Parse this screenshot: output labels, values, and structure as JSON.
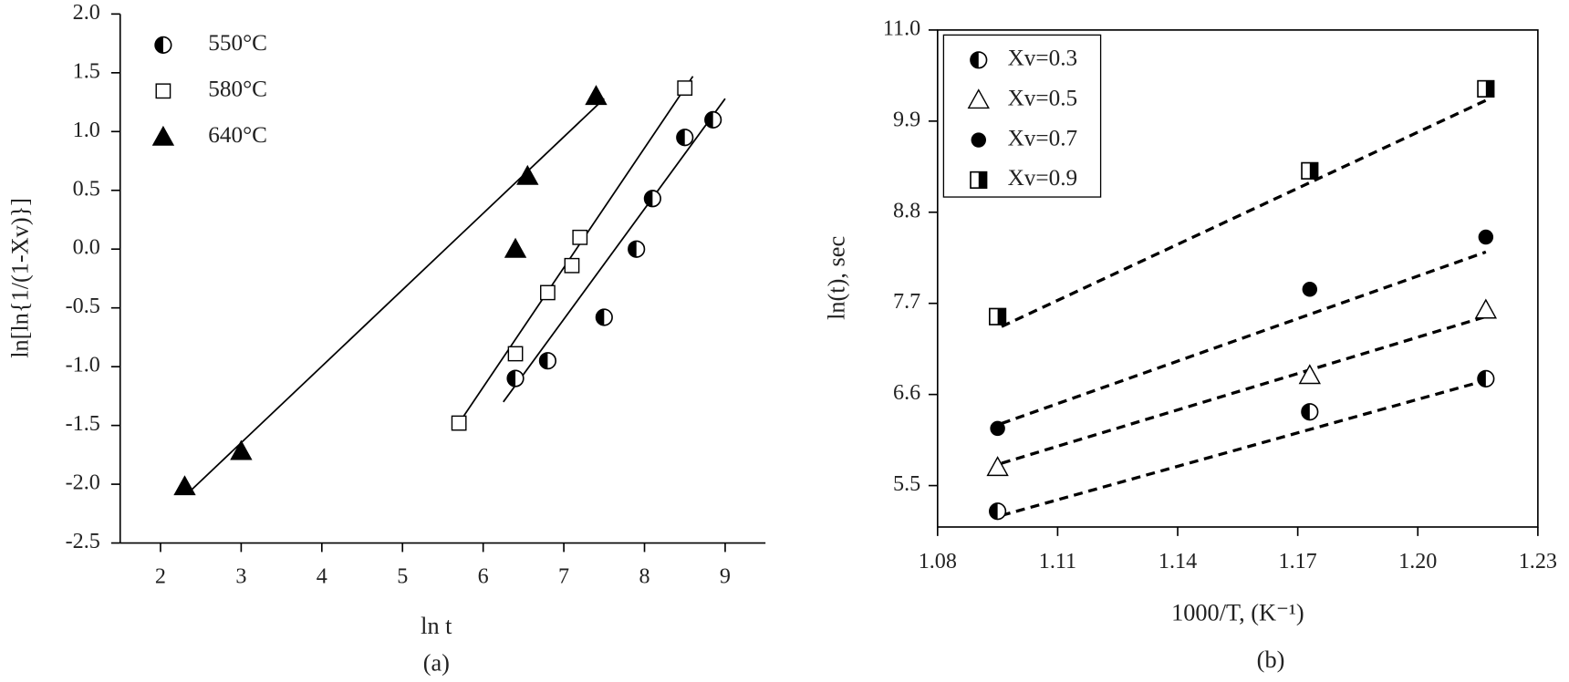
{
  "chart_data": [
    {
      "type": "scatter",
      "subtitle": "(a)",
      "xlabel": "ln t",
      "ylabel": "ln[ln{1/(1-Xv)}]",
      "xlim": [
        1.5,
        9.5
      ],
      "xticks": [
        2,
        3,
        4,
        5,
        6,
        7,
        8,
        9
      ],
      "ylim": [
        -2.5,
        2.0
      ],
      "yticks": [
        {
          "value": -2.5,
          "label": "-2.5"
        },
        {
          "value": -2,
          "label": "-2.0"
        },
        {
          "value": -1.5,
          "label": "-1.5"
        },
        {
          "value": -1,
          "label": "-1.0"
        },
        -0.5,
        {
          "value": 0,
          "label": "0.0"
        },
        0.5,
        {
          "value": 1,
          "label": "1.0"
        },
        {
          "value": 1.5,
          "label": "1.5"
        },
        {
          "value": 2,
          "label": "2.0"
        }
      ],
      "legend": "top-left",
      "legend_box": false,
      "frame": "left-bottom",
      "fit_style": "solid",
      "series": [
        {
          "name": "550°C",
          "color": "#000",
          "marker": "half-circle-left",
          "x": [
            6.4,
            6.8,
            7.5,
            7.9,
            8.1,
            8.5,
            8.85
          ],
          "values": [
            -1.1,
            -0.95,
            -0.58,
            0.0,
            0.43,
            0.95,
            1.1
          ],
          "fit": {
            "x": [
              6.25,
              9.0
            ],
            "y": [
              -1.3,
              1.28
            ]
          }
        },
        {
          "name": "580°C",
          "color": "#000",
          "marker": "open-square",
          "x": [
            5.7,
            6.4,
            6.8,
            7.1,
            7.2,
            8.5
          ],
          "values": [
            -1.48,
            -0.89,
            -0.37,
            -0.14,
            0.1,
            1.37
          ],
          "fit": {
            "x": [
              5.7,
              8.6
            ],
            "y": [
              -1.48,
              1.47
            ]
          }
        },
        {
          "name": "640°C",
          "color": "#000",
          "marker": "filled-triangle",
          "x": [
            2.3,
            3.0,
            6.4,
            6.55,
            7.4
          ],
          "values": [
            -2.02,
            -1.72,
            0.0,
            0.62,
            1.3
          ],
          "fit": {
            "x": [
              2.35,
              7.5
            ],
            "y": [
              -2.07,
              1.28
            ]
          }
        }
      ]
    },
    {
      "type": "scatter",
      "subtitle": "(b)",
      "xlabel": "1000/T, (K⁻¹)",
      "ylabel": "ln(t), sec",
      "xlim": [
        1.08,
        1.23
      ],
      "xticks": [
        1.08,
        1.11,
        1.14,
        1.17,
        {
          "value": 1.2,
          "label": "1.20"
        },
        1.23
      ],
      "ylim": [
        5.0,
        11.0
      ],
      "yticks": [
        5.5,
        6.6,
        7.7,
        8.8,
        9.9,
        {
          "value": 11,
          "label": "11.0"
        }
      ],
      "legend": "top-left",
      "legend_box": true,
      "frame": "box",
      "fit_style": "dashed",
      "x": [
        1.095,
        1.173,
        1.217
      ],
      "series": [
        {
          "name": "Xv=0.3",
          "color": "#000",
          "marker": "half-circle-left",
          "values": [
            5.19,
            6.39,
            6.79
          ],
          "fit": {
            "x": [
              1.096,
              1.217
            ],
            "y": [
              5.14,
              6.77
            ]
          }
        },
        {
          "name": "Xv=0.5",
          "color": "#000",
          "marker": "open-triangle",
          "values": [
            5.72,
            6.83,
            7.62
          ],
          "fit": {
            "x": [
              1.096,
              1.217
            ],
            "y": [
              5.77,
              7.54
            ]
          }
        },
        {
          "name": "Xv=0.7",
          "color": "#000",
          "marker": "filled-circle",
          "values": [
            6.19,
            7.87,
            8.5
          ],
          "fit": {
            "x": [
              1.096,
              1.217
            ],
            "y": [
              6.25,
              8.32
            ]
          }
        },
        {
          "name": "Xv=0.9",
          "color": "#000",
          "marker": "half-square-right",
          "values": [
            7.54,
            9.3,
            10.29
          ],
          "fit": {
            "x": [
              1.096,
              1.217
            ],
            "y": [
              7.42,
              10.15
            ]
          }
        }
      ]
    }
  ]
}
